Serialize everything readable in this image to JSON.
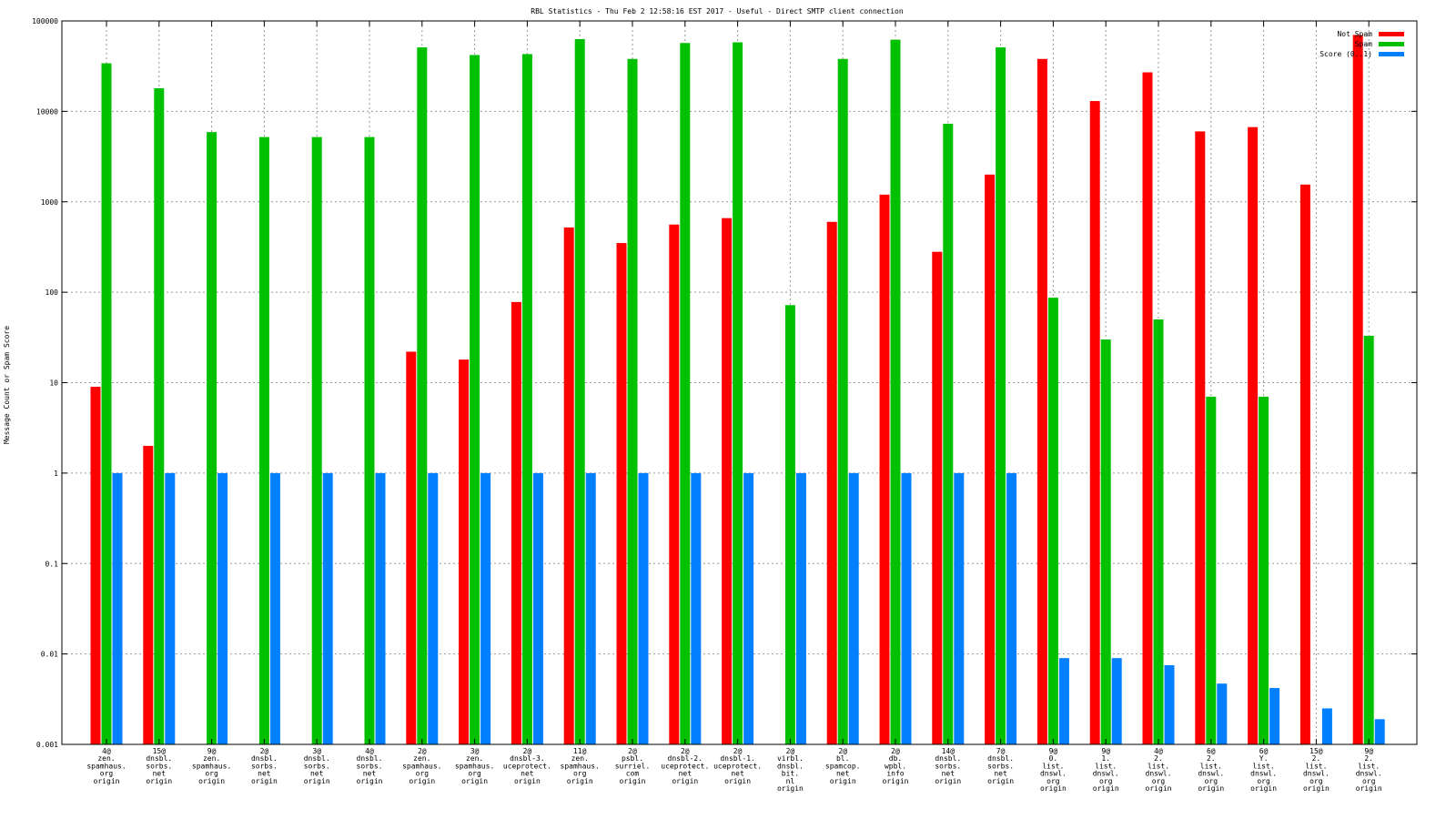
{
  "chart_data": {
    "type": "bar",
    "title": "RBL Statistics - Thu Feb  2 12:58:16 EST 2017 - Useful - Direct SMTP client connection",
    "xlabel": "",
    "ylabel": "Message Count or Spam Score",
    "y_scale": "log",
    "ylim": [
      0.001,
      100000
    ],
    "y_ticks": [
      "0.001",
      "0.01",
      "0.1",
      "1",
      "10",
      "100",
      "1000",
      "10000",
      "100000"
    ],
    "grid": true,
    "legend_position": "top-right",
    "categories": [
      [
        "4@",
        "zen.",
        "spamhaus.",
        "org",
        "origin"
      ],
      [
        "15@",
        "dnsbl.",
        "sorbs.",
        "net",
        "origin"
      ],
      [
        "9@",
        "zen.",
        "spamhaus.",
        "org",
        "origin"
      ],
      [
        "2@",
        "dnsbl.",
        "sorbs.",
        "net",
        "origin"
      ],
      [
        "3@",
        "dnsbl.",
        "sorbs.",
        "net",
        "origin"
      ],
      [
        "4@",
        "dnsbl.",
        "sorbs.",
        "net",
        "origin"
      ],
      [
        "2@",
        "zen.",
        "spamhaus.",
        "org",
        "origin"
      ],
      [
        "3@",
        "zen.",
        "spamhaus.",
        "org",
        "origin"
      ],
      [
        "2@",
        "dnsbl-3.",
        "uceprotect.",
        "net",
        "origin"
      ],
      [
        "11@",
        "zen.",
        "spamhaus.",
        "org",
        "origin"
      ],
      [
        "2@",
        "psbl.",
        "surriel.",
        "com",
        "origin"
      ],
      [
        "2@",
        "dnsbl-2.",
        "uceprotect.",
        "net",
        "origin"
      ],
      [
        "2@",
        "dnsbl-1.",
        "uceprotect.",
        "net",
        "origin"
      ],
      [
        "2@",
        "virbl.",
        "dnsbl.",
        "bit.",
        "nl",
        "origin"
      ],
      [
        "2@",
        "bl.",
        "spamcop.",
        "net",
        "origin"
      ],
      [
        "2@",
        "db.",
        "wpbl.",
        "info",
        "origin"
      ],
      [
        "14@",
        "dnsbl.",
        "sorbs.",
        "net",
        "origin"
      ],
      [
        "7@",
        "dnsbl.",
        "sorbs.",
        "net",
        "origin"
      ],
      [
        "9@",
        "0.",
        "list.",
        "dnswl.",
        "org",
        "origin"
      ],
      [
        "9@",
        "1.",
        "list.",
        "dnswl.",
        "org",
        "origin"
      ],
      [
        "4@",
        "2.",
        "list.",
        "dnswl.",
        "org",
        "origin"
      ],
      [
        "6@",
        "2.",
        "list.",
        "dnswl.",
        "org",
        "origin"
      ],
      [
        "6@",
        "Y.",
        "list.",
        "dnswl.",
        "org",
        "origin"
      ],
      [
        "15@",
        "2.",
        "list.",
        "dnswl.",
        "org",
        "origin"
      ],
      [
        "9@",
        "2.",
        "list.",
        "dnswl.",
        "org",
        "origin"
      ]
    ],
    "series": [
      {
        "name": "Not Spam",
        "color": "#ff0000",
        "values": [
          9,
          2,
          null,
          null,
          null,
          null,
          22,
          18,
          78,
          520,
          350,
          560,
          660,
          null,
          600,
          1200,
          280,
          2000,
          38000,
          13000,
          27000,
          6000,
          6700,
          1550,
          70000
        ]
      },
      {
        "name": "Spam",
        "color": "#00c000",
        "values": [
          34000,
          18000,
          5900,
          5200,
          5200,
          5200,
          51000,
          42000,
          43000,
          63000,
          38000,
          57000,
          58000,
          72,
          38000,
          62000,
          7300,
          51000,
          87,
          30,
          50,
          7,
          7,
          null,
          33
        ]
      },
      {
        "name": "Score (0..1)",
        "color": "#0080ff",
        "values": [
          1,
          1,
          1,
          1,
          1,
          1,
          1,
          1,
          1,
          1,
          1,
          1,
          1,
          1,
          1,
          1,
          1,
          1,
          0.009,
          0.009,
          0.0075,
          0.0047,
          0.0042,
          0.0025,
          0.0019
        ]
      }
    ]
  }
}
